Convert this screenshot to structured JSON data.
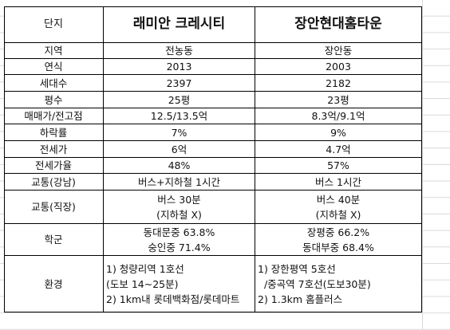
{
  "table": {
    "header": [
      "단지",
      "래미안 크레시티",
      "장안현대홈타운"
    ],
    "rows": [
      [
        "지역",
        [
          "전농동"
        ],
        [
          "장안동"
        ]
      ],
      [
        "연식",
        [
          "2013"
        ],
        [
          "2003"
        ]
      ],
      [
        "세대수",
        [
          "2397"
        ],
        [
          "2182"
        ]
      ],
      [
        "평수",
        [
          "25평"
        ],
        [
          "23평"
        ]
      ],
      [
        "매매가/전고점",
        [
          "12.5/13.5억"
        ],
        [
          "8.3억/9.1억"
        ]
      ],
      [
        "하락률",
        [
          "7%"
        ],
        [
          "9%"
        ]
      ],
      [
        "전세가",
        [
          "6억"
        ],
        [
          "4.7억"
        ]
      ],
      [
        "전세가율",
        [
          "48%"
        ],
        [
          "57%"
        ]
      ],
      [
        "교통(강남)",
        [
          "버스+지하철 1시간"
        ],
        [
          "버스 1시간"
        ]
      ],
      [
        "교통(직장)",
        [
          "버스 30분",
          "(지하철 X)"
        ],
        [
          "버스 40분",
          "(지하철 X)"
        ]
      ],
      [
        "학군",
        [
          "동대문중 63.8%",
          "숭인중 71.4%"
        ],
        [
          "장평중 66.2%",
          "동대부중 68.4%"
        ]
      ],
      [
        "환경",
        [
          "1) 청량리역 1호선",
          "(도보 14~25분)",
          "2) 1km내 롯데백화점/롯데마트"
        ],
        [
          "1) 장한평역 5호선",
          "  /중곡역 7호선(도보30분)",
          "2) 1.3km 홈플러스"
        ]
      ]
    ]
  }
}
